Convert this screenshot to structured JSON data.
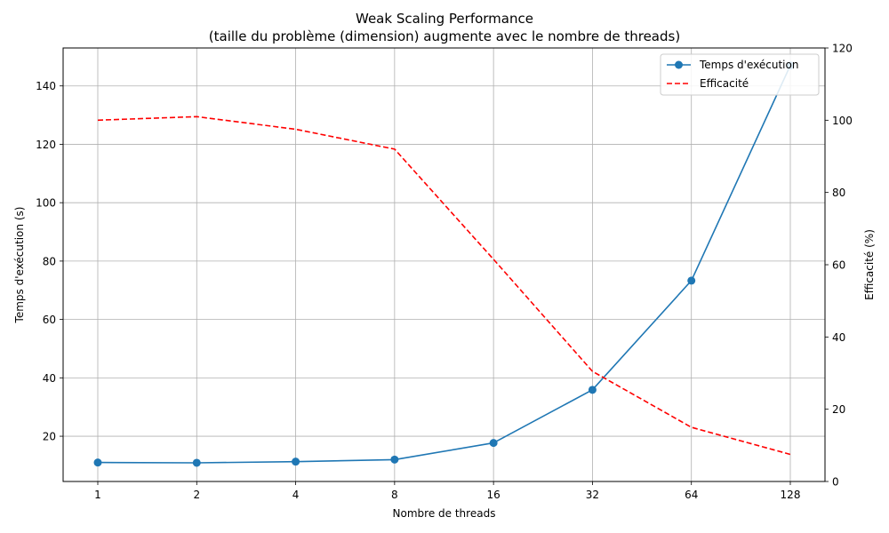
{
  "chart_data": {
    "type": "line",
    "title": "Weak Scaling Performance",
    "subtitle": "(taille du problème (dimension) augmente avec le nombre de threads)",
    "xlabel": "Nombre de threads",
    "ylabel_left": "Temps d'exécution (s)",
    "ylabel_right": "Efficacité (%)",
    "x_scale": "log2",
    "categories": [
      "1",
      "2",
      "4",
      "8",
      "16",
      "32",
      "64",
      "128"
    ],
    "x": [
      1,
      2,
      4,
      8,
      16,
      32,
      64,
      128
    ],
    "ylim_left": [
      4.5,
      153
    ],
    "ylim_right": [
      0,
      120
    ],
    "yticks_left": [
      "20",
      "40",
      "60",
      "80",
      "100",
      "120",
      "140"
    ],
    "yticks_right": [
      "0",
      "20",
      "40",
      "60",
      "80",
      "100",
      "120"
    ],
    "grid": true,
    "legend_position": "top-right",
    "series": [
      {
        "name": "Temps d'exécution",
        "axis": "left",
        "color": "#1f77b4",
        "style": "solid-with-markers",
        "values": [
          11.0,
          10.9,
          11.3,
          12.0,
          17.7,
          35.9,
          73.3,
          147.0
        ]
      },
      {
        "name": "Efficacité",
        "axis": "right",
        "color": "#ff0000",
        "style": "dashed",
        "values": [
          100.0,
          101.0,
          97.5,
          92.0,
          61.5,
          30.5,
          15.0,
          7.5
        ]
      }
    ]
  }
}
